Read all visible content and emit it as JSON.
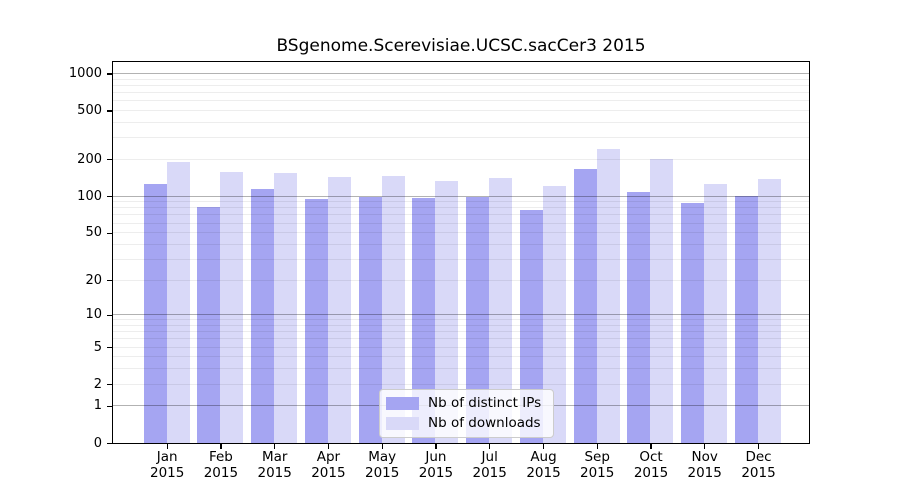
{
  "title": "BSgenome.Scerevisiae.UCSC.sacCer3 2015",
  "chart_data": {
    "type": "bar",
    "scale": "log1p",
    "title": "BSgenome.Scerevisiae.UCSC.sacCer3 2015",
    "categories": [
      "Jan",
      "Feb",
      "Mar",
      "Apr",
      "May",
      "Jun",
      "Jul",
      "Aug",
      "Sep",
      "Oct",
      "Nov",
      "Dec"
    ],
    "year_label": "2015",
    "series": [
      {
        "name": "Nb of distinct IPs",
        "color": "#a5a5f2",
        "values": [
          126,
          81,
          114,
          94,
          98,
          96,
          98,
          77,
          166,
          108,
          88,
          100
        ]
      },
      {
        "name": "Nb of downloads",
        "color": "#d9d9f8",
        "values": [
          189,
          159,
          156,
          143,
          147,
          134,
          140,
          122,
          242,
          200,
          126,
          139
        ]
      }
    ],
    "yticks": [
      0,
      1,
      2,
      5,
      10,
      20,
      50,
      100,
      200,
      500,
      1000
    ],
    "ylim": [
      0,
      1100
    ],
    "grid": true,
    "legend_position": "bottom-center-inside"
  },
  "colors": {
    "ips_bar": "#a5a5f2",
    "downloads_bar": "#d9d9f8",
    "major_grid": "#b0b0b0",
    "minor_grid": "#ededed",
    "axis": "#000000"
  }
}
